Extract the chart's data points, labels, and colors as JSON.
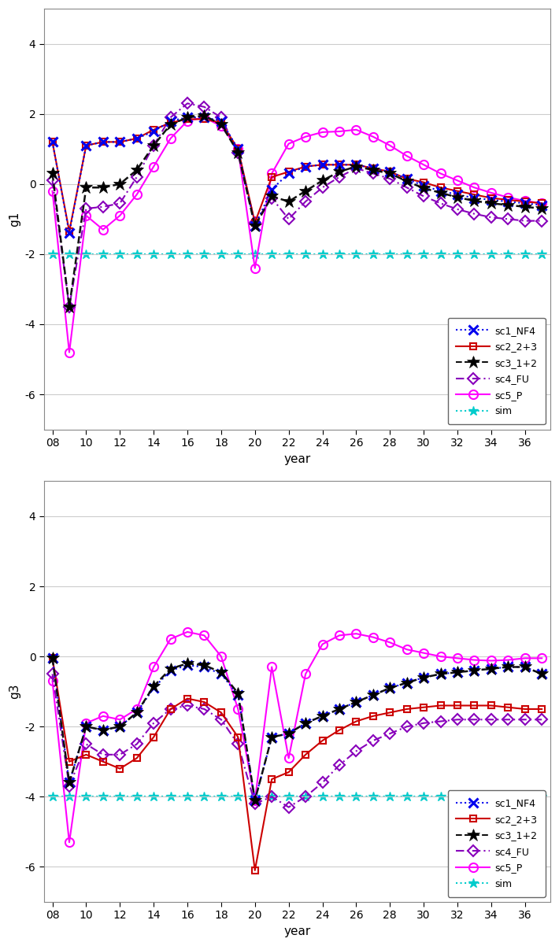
{
  "years": [
    8,
    9,
    10,
    11,
    12,
    13,
    14,
    15,
    16,
    17,
    18,
    19,
    20,
    21,
    22,
    23,
    24,
    25,
    26,
    27,
    28,
    29,
    30,
    31,
    32,
    33,
    34,
    35,
    36,
    37
  ],
  "g1": {
    "sc1_NF4": [
      1.2,
      -1.4,
      1.1,
      1.2,
      1.2,
      1.3,
      1.5,
      1.8,
      1.9,
      1.9,
      1.8,
      1.0,
      -1.2,
      -0.15,
      0.3,
      0.5,
      0.55,
      0.55,
      0.55,
      0.45,
      0.35,
      0.15,
      -0.05,
      -0.2,
      -0.3,
      -0.4,
      -0.45,
      -0.5,
      -0.55,
      -0.6
    ],
    "sc2_2p3": [
      1.2,
      -1.35,
      1.1,
      1.2,
      1.2,
      1.3,
      1.55,
      1.75,
      1.85,
      1.85,
      1.75,
      1.0,
      -1.1,
      0.2,
      0.35,
      0.5,
      0.55,
      0.55,
      0.55,
      0.45,
      0.35,
      0.15,
      0.05,
      -0.1,
      -0.2,
      -0.3,
      -0.4,
      -0.45,
      -0.5,
      -0.55
    ],
    "sc3_1p2": [
      0.3,
      -3.5,
      -0.1,
      -0.1,
      0.0,
      0.4,
      1.1,
      1.7,
      1.9,
      1.95,
      1.7,
      0.9,
      -1.2,
      -0.35,
      -0.5,
      -0.2,
      0.1,
      0.35,
      0.5,
      0.4,
      0.3,
      0.08,
      -0.12,
      -0.25,
      -0.38,
      -0.48,
      -0.55,
      -0.6,
      -0.65,
      -0.7
    ],
    "sc4_FU": [
      0.1,
      -3.5,
      -0.7,
      -0.65,
      -0.55,
      0.2,
      1.1,
      1.9,
      2.3,
      2.2,
      1.9,
      0.9,
      -1.1,
      -0.4,
      -1.0,
      -0.5,
      -0.1,
      0.2,
      0.45,
      0.3,
      0.15,
      -0.1,
      -0.35,
      -0.55,
      -0.72,
      -0.85,
      -0.95,
      -1.0,
      -1.05,
      -1.05
    ],
    "sc5_P": [
      -0.2,
      -4.8,
      -0.9,
      -1.3,
      -0.9,
      -0.3,
      0.5,
      1.3,
      1.8,
      1.9,
      1.65,
      1.0,
      -2.4,
      0.3,
      1.15,
      1.35,
      1.48,
      1.5,
      1.55,
      1.35,
      1.1,
      0.8,
      0.55,
      0.3,
      0.1,
      -0.1,
      -0.25,
      -0.38,
      -0.48,
      -0.55
    ],
    "sim": [
      -2.0,
      -2.0,
      -2.0,
      -2.0,
      -2.0,
      -2.0,
      -2.0,
      -2.0,
      -2.0,
      -2.0,
      -2.0,
      -2.0,
      -2.0,
      -2.0,
      -2.0,
      -2.0,
      -2.0,
      -2.0,
      -2.0,
      -2.0,
      -2.0,
      -2.0,
      -2.0,
      -2.0,
      -2.0,
      -2.0,
      -2.0,
      -2.0,
      -2.0,
      -2.0
    ]
  },
  "g3": {
    "sc1_NF4": [
      -0.05,
      -3.6,
      -2.0,
      -2.1,
      -2.0,
      -1.6,
      -0.9,
      -0.4,
      -0.25,
      -0.3,
      -0.5,
      -1.1,
      -4.1,
      -2.3,
      -2.2,
      -1.9,
      -1.7,
      -1.5,
      -1.3,
      -1.1,
      -0.9,
      -0.75,
      -0.6,
      -0.5,
      -0.45,
      -0.4,
      -0.35,
      -0.3,
      -0.3,
      -0.5
    ],
    "sc2_2p3": [
      -0.05,
      -3.0,
      -2.8,
      -3.0,
      -3.2,
      -2.9,
      -2.3,
      -1.5,
      -1.2,
      -1.3,
      -1.6,
      -2.3,
      -6.1,
      -3.5,
      -3.3,
      -2.8,
      -2.4,
      -2.1,
      -1.85,
      -1.7,
      -1.6,
      -1.5,
      -1.45,
      -1.4,
      -1.4,
      -1.4,
      -1.4,
      -1.45,
      -1.5,
      -1.5
    ],
    "sc3_1p2": [
      -0.05,
      -3.6,
      -2.0,
      -2.1,
      -2.0,
      -1.6,
      -0.85,
      -0.35,
      -0.2,
      -0.25,
      -0.45,
      -1.05,
      -4.1,
      -2.3,
      -2.2,
      -1.9,
      -1.7,
      -1.5,
      -1.3,
      -1.1,
      -0.9,
      -0.75,
      -0.6,
      -0.5,
      -0.45,
      -0.4,
      -0.35,
      -0.3,
      -0.3,
      -0.5
    ],
    "sc4_FU": [
      -0.5,
      -3.7,
      -2.5,
      -2.8,
      -2.8,
      -2.5,
      -1.9,
      -1.5,
      -1.4,
      -1.5,
      -1.8,
      -2.5,
      -4.2,
      -4.0,
      -4.3,
      -4.0,
      -3.6,
      -3.1,
      -2.7,
      -2.4,
      -2.2,
      -2.0,
      -1.9,
      -1.85,
      -1.8,
      -1.8,
      -1.8,
      -1.8,
      -1.8,
      -1.8
    ],
    "sc5_P": [
      -0.7,
      -5.3,
      -1.9,
      -1.7,
      -1.8,
      -1.5,
      -0.3,
      0.5,
      0.7,
      0.6,
      0.0,
      -1.5,
      -4.1,
      -0.3,
      -2.9,
      -0.5,
      0.35,
      0.6,
      0.65,
      0.55,
      0.4,
      0.2,
      0.1,
      0.0,
      -0.05,
      -0.1,
      -0.12,
      -0.1,
      -0.05,
      -0.05
    ],
    "sim": [
      -4.0,
      -4.0,
      -4.0,
      -4.0,
      -4.0,
      -4.0,
      -4.0,
      -4.0,
      -4.0,
      -4.0,
      -4.0,
      -4.0,
      -4.0,
      -4.0,
      -4.0,
      -4.0,
      -4.0,
      -4.0,
      -4.0,
      -4.0,
      -4.0,
      -4.0,
      -4.0,
      -4.0,
      -4.0,
      -4.0,
      -4.0,
      -4.0,
      -4.0,
      -4.0
    ]
  },
  "colors": {
    "sc1_NF4": "#0000EE",
    "sc2_2p3": "#CC0000",
    "sc3_1p2": "#111111",
    "sc4_FU": "#8800BB",
    "sc5_P": "#FF00FF",
    "sim": "#00CCCC"
  },
  "ylim": [
    -7.0,
    5.0
  ],
  "yticks": [
    -6,
    -4,
    -2,
    0,
    2,
    4
  ],
  "xtick_positions": [
    8,
    10,
    12,
    14,
    16,
    18,
    20,
    22,
    24,
    26,
    28,
    30,
    32,
    34,
    36
  ],
  "xtick_labels": [
    "08",
    "10",
    "12",
    "14",
    "16",
    "18",
    "20",
    "22",
    "24",
    "26",
    "28",
    "30",
    "32",
    "34",
    "36"
  ],
  "xlabel": "year",
  "ylabel_g1": "g1",
  "ylabel_g3": "g3"
}
